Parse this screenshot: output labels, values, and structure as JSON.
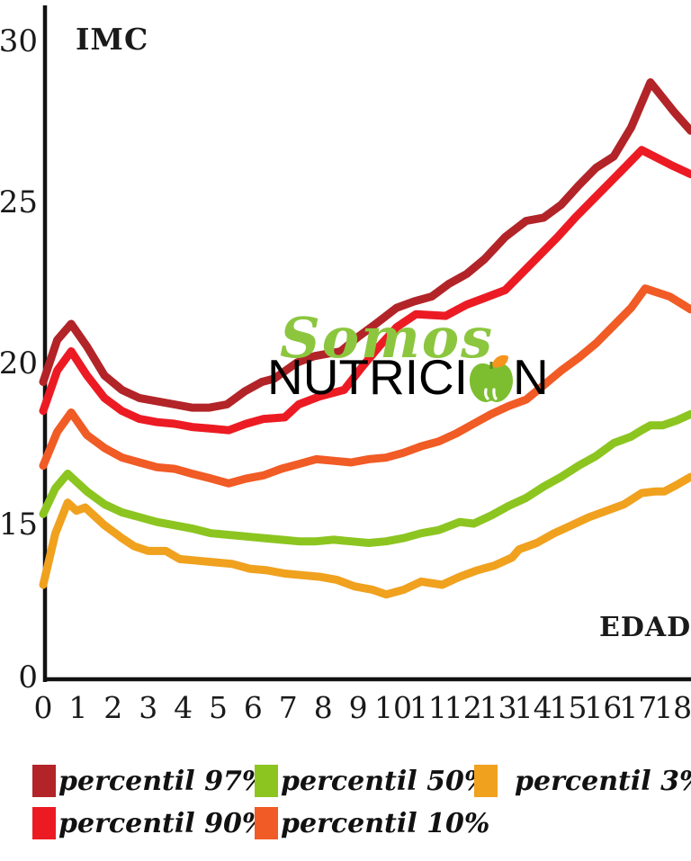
{
  "axis_labels": {
    "y": "IMC",
    "x": "EDAD"
  },
  "watermark": {
    "word": "Somos",
    "brand_prefix": "NUTRICI",
    "brand_suffix": "N"
  },
  "chart_data": {
    "type": "line",
    "title": "",
    "xlabel": "EDAD",
    "ylabel": "IMC",
    "x_ticks": [
      "0",
      "1",
      "2",
      "3",
      "4",
      "5",
      "6",
      "7",
      "8",
      "9",
      "10",
      "11",
      "12",
      "13",
      "14",
      "15",
      "16",
      "17",
      "18"
    ],
    "y_ticks": [
      "30",
      "25",
      "20",
      "15",
      "0"
    ],
    "xlim": [
      0,
      18.5
    ],
    "ylim": [
      0,
      30
    ],
    "y_axis_break": "axis compressed between 0 and 15",
    "grid": false,
    "legend_position": "bottom",
    "series": [
      {
        "name": "percentil 97%",
        "percentile": 97,
        "color": "#b22428",
        "points": [
          [
            0,
            19.4
          ],
          [
            0.4,
            20.7
          ],
          [
            0.8,
            21.2
          ],
          [
            1.25,
            20.5
          ],
          [
            1.75,
            19.6
          ],
          [
            2.25,
            19.15
          ],
          [
            2.75,
            18.9
          ],
          [
            3.25,
            18.8
          ],
          [
            3.75,
            18.7
          ],
          [
            4.25,
            18.6
          ],
          [
            4.75,
            18.6
          ],
          [
            5.25,
            18.7
          ],
          [
            5.75,
            19.1
          ],
          [
            6.25,
            19.4
          ],
          [
            6.6,
            19.5
          ],
          [
            7.25,
            20.0
          ],
          [
            7.75,
            20.2
          ],
          [
            8.5,
            20.35
          ],
          [
            9.0,
            20.8
          ],
          [
            9.5,
            21.2
          ],
          [
            10.1,
            21.7
          ],
          [
            10.6,
            21.9
          ],
          [
            11.1,
            22.05
          ],
          [
            11.6,
            22.45
          ],
          [
            12.1,
            22.75
          ],
          [
            12.6,
            23.2
          ],
          [
            13.2,
            23.9
          ],
          [
            13.8,
            24.4
          ],
          [
            14.3,
            24.5
          ],
          [
            14.8,
            24.9
          ],
          [
            15.3,
            25.5
          ],
          [
            15.8,
            26.05
          ],
          [
            16.3,
            26.4
          ],
          [
            16.8,
            27.3
          ],
          [
            17.35,
            28.7
          ],
          [
            18.05,
            27.75
          ],
          [
            18.5,
            27.2
          ]
        ]
      },
      {
        "name": "percentil 90%",
        "percentile": 90,
        "color": "#ec1b23",
        "points": [
          [
            0,
            18.5
          ],
          [
            0.4,
            19.75
          ],
          [
            0.8,
            20.35
          ],
          [
            1.25,
            19.6
          ],
          [
            1.75,
            18.9
          ],
          [
            2.25,
            18.5
          ],
          [
            2.75,
            18.25
          ],
          [
            3.25,
            18.15
          ],
          [
            3.75,
            18.1
          ],
          [
            4.25,
            18.0
          ],
          [
            4.8,
            17.95
          ],
          [
            5.3,
            17.9
          ],
          [
            5.8,
            18.1
          ],
          [
            6.3,
            18.25
          ],
          [
            6.9,
            18.3
          ],
          [
            7.3,
            18.7
          ],
          [
            7.9,
            18.95
          ],
          [
            8.6,
            19.15
          ],
          [
            9.1,
            19.85
          ],
          [
            9.6,
            20.5
          ],
          [
            10.1,
            21.1
          ],
          [
            10.65,
            21.5
          ],
          [
            11.5,
            21.45
          ],
          [
            12.1,
            21.8
          ],
          [
            12.6,
            22.0
          ],
          [
            13.2,
            22.25
          ],
          [
            13.7,
            22.8
          ],
          [
            14.2,
            23.35
          ],
          [
            14.7,
            23.9
          ],
          [
            15.2,
            24.5
          ],
          [
            15.7,
            25.05
          ],
          [
            16.2,
            25.6
          ],
          [
            16.7,
            26.15
          ],
          [
            17.1,
            26.6
          ],
          [
            18.0,
            26.1
          ],
          [
            18.5,
            25.85
          ]
        ]
      },
      {
        "name": "percentil 10%",
        "percentile": 10,
        "color": "#f15b25",
        "points": [
          [
            0,
            16.8
          ],
          [
            0.4,
            17.85
          ],
          [
            0.8,
            18.45
          ],
          [
            1.25,
            17.75
          ],
          [
            1.75,
            17.35
          ],
          [
            2.25,
            17.05
          ],
          [
            2.75,
            16.9
          ],
          [
            3.25,
            16.75
          ],
          [
            3.75,
            16.7
          ],
          [
            4.25,
            16.55
          ],
          [
            4.8,
            16.4
          ],
          [
            5.3,
            16.25
          ],
          [
            5.8,
            16.4
          ],
          [
            6.3,
            16.5
          ],
          [
            6.8,
            16.7
          ],
          [
            7.3,
            16.85
          ],
          [
            7.8,
            17.0
          ],
          [
            8.3,
            16.95
          ],
          [
            8.8,
            16.9
          ],
          [
            9.3,
            17.0
          ],
          [
            9.8,
            17.05
          ],
          [
            10.3,
            17.2
          ],
          [
            10.8,
            17.4
          ],
          [
            11.3,
            17.55
          ],
          [
            11.8,
            17.8
          ],
          [
            12.3,
            18.1
          ],
          [
            12.8,
            18.4
          ],
          [
            13.3,
            18.65
          ],
          [
            13.8,
            18.85
          ],
          [
            14.3,
            19.3
          ],
          [
            14.8,
            19.75
          ],
          [
            15.3,
            20.15
          ],
          [
            15.8,
            20.6
          ],
          [
            16.3,
            21.15
          ],
          [
            16.8,
            21.7
          ],
          [
            17.2,
            22.3
          ],
          [
            17.9,
            22.05
          ],
          [
            18.5,
            21.65
          ]
        ]
      },
      {
        "name": "percentil 50%",
        "percentile": 50,
        "color": "#8cc520",
        "points": [
          [
            0,
            15.3
          ],
          [
            0.35,
            16.1
          ],
          [
            0.7,
            16.55
          ],
          [
            1.25,
            16.0
          ],
          [
            1.75,
            15.6
          ],
          [
            2.25,
            15.35
          ],
          [
            2.75,
            15.2
          ],
          [
            3.25,
            15.05
          ],
          [
            3.75,
            14.95
          ],
          [
            4.25,
            14.85
          ],
          [
            4.8,
            14.7
          ],
          [
            5.3,
            14.65
          ],
          [
            5.8,
            14.6
          ],
          [
            6.3,
            14.55
          ],
          [
            6.8,
            14.5
          ],
          [
            7.3,
            14.45
          ],
          [
            7.8,
            14.45
          ],
          [
            8.3,
            14.5
          ],
          [
            8.8,
            14.45
          ],
          [
            9.3,
            14.4
          ],
          [
            9.8,
            14.45
          ],
          [
            10.3,
            14.55
          ],
          [
            10.8,
            14.7
          ],
          [
            11.3,
            14.8
          ],
          [
            11.9,
            15.05
          ],
          [
            12.3,
            15.0
          ],
          [
            12.8,
            15.25
          ],
          [
            13.3,
            15.55
          ],
          [
            13.8,
            15.8
          ],
          [
            14.3,
            16.15
          ],
          [
            14.8,
            16.45
          ],
          [
            15.3,
            16.8
          ],
          [
            15.8,
            17.1
          ],
          [
            16.3,
            17.5
          ],
          [
            16.8,
            17.7
          ],
          [
            17.1,
            17.9
          ],
          [
            17.35,
            18.05
          ],
          [
            17.7,
            18.05
          ],
          [
            18.1,
            18.2
          ],
          [
            18.5,
            18.4
          ]
        ]
      },
      {
        "name": "percentil 3%",
        "percentile": 3,
        "color": "#f0a11e",
        "points": [
          [
            0,
            13.1
          ],
          [
            0.35,
            14.7
          ],
          [
            0.7,
            15.65
          ],
          [
            0.95,
            15.4
          ],
          [
            1.2,
            15.5
          ],
          [
            1.75,
            14.95
          ],
          [
            2.25,
            14.55
          ],
          [
            2.6,
            14.3
          ],
          [
            3.0,
            14.15
          ],
          [
            3.5,
            14.15
          ],
          [
            3.9,
            13.9
          ],
          [
            4.4,
            13.85
          ],
          [
            4.9,
            13.8
          ],
          [
            5.4,
            13.75
          ],
          [
            5.9,
            13.6
          ],
          [
            6.4,
            13.55
          ],
          [
            6.9,
            13.45
          ],
          [
            7.4,
            13.4
          ],
          [
            7.9,
            13.35
          ],
          [
            8.4,
            13.25
          ],
          [
            8.9,
            13.05
          ],
          [
            9.4,
            12.95
          ],
          [
            9.8,
            12.8
          ],
          [
            10.3,
            12.95
          ],
          [
            10.8,
            13.2
          ],
          [
            11.4,
            13.1
          ],
          [
            11.9,
            13.35
          ],
          [
            12.4,
            13.55
          ],
          [
            12.9,
            13.7
          ],
          [
            13.4,
            13.95
          ],
          [
            13.6,
            14.2
          ],
          [
            14.1,
            14.4
          ],
          [
            14.6,
            14.7
          ],
          [
            15.1,
            14.95
          ],
          [
            15.6,
            15.2
          ],
          [
            16.1,
            15.4
          ],
          [
            16.6,
            15.6
          ],
          [
            17.1,
            15.95
          ],
          [
            17.5,
            16.0
          ],
          [
            17.75,
            16.0
          ],
          [
            18.1,
            16.2
          ],
          [
            18.5,
            16.45
          ]
        ]
      }
    ]
  },
  "legend": {
    "items": [
      {
        "label": "percentil 97%",
        "color": "#b22428"
      },
      {
        "label": "percentil 50%",
        "color": "#8cc520"
      },
      {
        "label": "percentil 3%",
        "color": "#f0a11e"
      },
      {
        "label": "percentil 90%",
        "color": "#ec1b23"
      },
      {
        "label": "percentil 10%",
        "color": "#f15b25"
      }
    ]
  },
  "colors": {
    "axis": "#111111",
    "text": "#1a1a1a",
    "watermark_green": "#8cc63f",
    "watermark_black": "#000000",
    "leaf_orange": "#f7941d",
    "background": "#ffffff"
  }
}
